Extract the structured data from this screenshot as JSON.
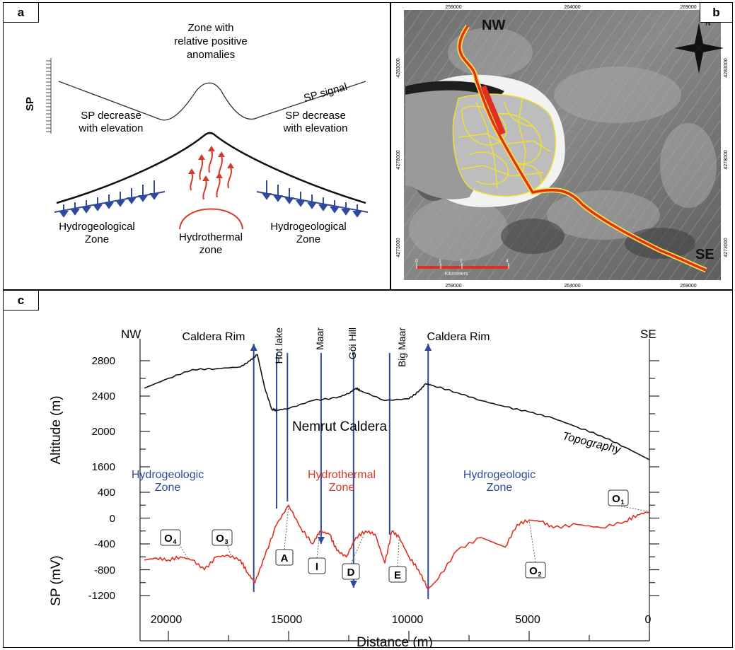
{
  "panel_a": {
    "label": "a",
    "y_axis": "SP",
    "top_label": [
      "Zone with",
      "relative positive",
      "anomalies"
    ],
    "signal_label": "SP signal",
    "left_decrease": [
      "SP decrease",
      "with elevation"
    ],
    "right_decrease": [
      "SP decrease",
      "with elevation"
    ],
    "left_zone": [
      "Hydrogeological",
      "Zone"
    ],
    "middle_zone": [
      "Hydrothermal",
      "zone"
    ],
    "right_zone": [
      "Hydrogeological",
      "Zone"
    ]
  },
  "panel_b": {
    "label": "b",
    "nw": "NW",
    "se": "SE",
    "north": "N",
    "top_ticks": [
      "259000",
      "264000",
      "269000"
    ],
    "bottom_ticks": [
      "259000",
      "264000",
      "269000"
    ],
    "side_ticks": [
      "4283000",
      "4278000",
      "4273000"
    ],
    "scale_ticks": [
      "0",
      "1",
      "2",
      "4"
    ],
    "scale_unit": "Kilometers"
  },
  "panel_c": {
    "label": "c",
    "nw": "NW",
    "se": "SE",
    "xlabel": "Distance (m)",
    "alt_ylabel": "Altitude (m)",
    "sp_ylabel": "SP (mV)",
    "alt_ticks": [
      "2800",
      "2400",
      "2000",
      "1600"
    ],
    "sp_ticks": [
      "400",
      "0",
      "-400",
      "-800",
      "-1200"
    ],
    "x_ticks": [
      "20000",
      "15000",
      "10000",
      "5000",
      "0"
    ],
    "caldera_rim_left": "Caldera Rim",
    "caldera_rim_right": "Caldera Rim",
    "hot_lake": "Hot lake",
    "maar": "Maar",
    "goi_hill": "Göi Hill",
    "big_maar": "Big Maar",
    "nemrut": "Nemrut Caldera",
    "topography": "Topography",
    "hydrogeo_left": [
      "Hydrogeologic",
      "Zone"
    ],
    "hydrothermal": [
      "Hydrothermal",
      "Zone"
    ],
    "hydrogeo_right": [
      "Hydrogeologic",
      "Zone"
    ],
    "markers": {
      "A": "A",
      "I": "I",
      "D": "D",
      "E": "E",
      "O1": "O",
      "O2": "O",
      "O3": "O",
      "O4": "O",
      "s1": "1",
      "s2": "2",
      "s3": "3",
      "s4": "4"
    }
  },
  "colors": {
    "sp_line": "#e03020",
    "blue": "#2f4a9a",
    "red": "#d63a2a",
    "yellow": "#f2e22a"
  },
  "chart_data": {
    "type": "line",
    "xlabel": "Distance (m)",
    "x_reversed": true,
    "series": [
      {
        "name": "Topography",
        "axis": "Altitude (m)",
        "ylim": [
          1600,
          2900
        ],
        "x": [
          21000,
          20000,
          19000,
          18000,
          17000,
          16600,
          16300,
          16000,
          15700,
          15500,
          15000,
          14000,
          13000,
          12500,
          12200,
          12000,
          11000,
          10000,
          9600,
          9300,
          9000,
          8000,
          7000,
          6000,
          5000,
          4000,
          3000,
          2000,
          1000,
          0
        ],
        "y": [
          2490,
          2600,
          2700,
          2710,
          2730,
          2800,
          2870,
          2500,
          2250,
          2240,
          2260,
          2350,
          2380,
          2430,
          2490,
          2460,
          2350,
          2370,
          2450,
          2540,
          2520,
          2440,
          2350,
          2280,
          2220,
          2150,
          2050,
          1950,
          1820,
          1680
        ]
      },
      {
        "name": "SP",
        "axis": "SP (mV)",
        "ylim": [
          -1200,
          400
        ],
        "x": [
          21000,
          20500,
          20000,
          19500,
          19000,
          18500,
          18000,
          17500,
          17000,
          16700,
          16400,
          16000,
          15500,
          15000,
          14500,
          14000,
          13700,
          13300,
          13000,
          12600,
          12200,
          11800,
          11400,
          11000,
          10700,
          10400,
          10000,
          9600,
          9200,
          8800,
          8000,
          7000,
          6000,
          5500,
          5000,
          4500,
          4000,
          3000,
          2000,
          1000,
          500,
          0
        ],
        "y": [
          -650,
          -620,
          -650,
          -600,
          -650,
          -800,
          -600,
          -580,
          -650,
          -850,
          -1000,
          -600,
          -100,
          200,
          -150,
          -400,
          -200,
          -250,
          -500,
          -600,
          -300,
          -200,
          -250,
          -700,
          -200,
          -300,
          -600,
          -800,
          -1100,
          -950,
          -500,
          -300,
          -450,
          -100,
          -30,
          -50,
          -150,
          -100,
          -150,
          -50,
          50,
          100
        ]
      }
    ],
    "labels": [
      {
        "text": "A",
        "x": 15000,
        "y": 200
      },
      {
        "text": "I",
        "x": 13700,
        "y": -200
      },
      {
        "text": "D",
        "x": 11800,
        "y": -200
      },
      {
        "text": "E",
        "x": 10400,
        "y": -300
      },
      {
        "text": "O1",
        "x": 0,
        "y": 100
      },
      {
        "text": "O2",
        "x": 5000,
        "y": -30
      },
      {
        "text": "O3",
        "x": 17400,
        "y": -580
      },
      {
        "text": "O4",
        "x": 19200,
        "y": -620
      }
    ]
  }
}
